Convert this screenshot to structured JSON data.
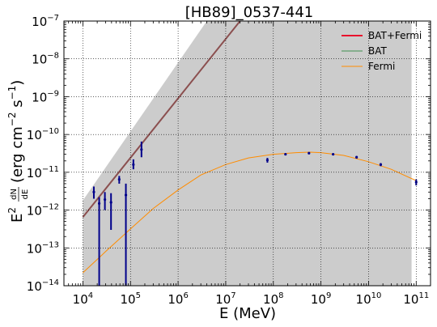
{
  "chart_data": {
    "type": "scatter",
    "title": "[HB89]_0537-441",
    "xlabel": "E (MeV)",
    "ylabel_main": "E",
    "ylabel_sup": "2",
    "ylabel_frac_num": "dN",
    "ylabel_frac_den": "dE",
    "ylabel_units": "(erg cm",
    "ylabel_units_sup": "−2",
    "ylabel_units_mid": " s",
    "ylabel_units_sup2": "−1",
    "ylabel_units_end": ")",
    "xscale": "log",
    "yscale": "log",
    "xlim": [
      4000.0,
      200000000000.0
    ],
    "ylim": [
      1e-14,
      1e-07
    ],
    "grid": true,
    "legend_position": "top-right",
    "x_ticks": [
      {
        "value": 10000.0,
        "base": "10",
        "exp": "4"
      },
      {
        "value": 100000.0,
        "base": "10",
        "exp": "5"
      },
      {
        "value": 1000000.0,
        "base": "10",
        "exp": "6"
      },
      {
        "value": 10000000.0,
        "base": "10",
        "exp": "7"
      },
      {
        "value": 100000000.0,
        "base": "10",
        "exp": "8"
      },
      {
        "value": 1000000000.0,
        "base": "10",
        "exp": "9"
      },
      {
        "value": 10000000000.0,
        "base": "10",
        "exp": "10"
      },
      {
        "value": 100000000000.0,
        "base": "10",
        "exp": "11"
      }
    ],
    "y_ticks": [
      {
        "value": 1e-14,
        "base": "10",
        "exp": "−14"
      },
      {
        "value": 1e-13,
        "base": "10",
        "exp": "−13"
      },
      {
        "value": 1e-12,
        "base": "10",
        "exp": "−12"
      },
      {
        "value": 1e-11,
        "base": "10",
        "exp": "−11"
      },
      {
        "value": 1e-10,
        "base": "10",
        "exp": "−10"
      },
      {
        "value": 1e-09,
        "base": "10",
        "exp": "−9"
      },
      {
        "value": 1e-08,
        "base": "10",
        "exp": "−8"
      },
      {
        "value": 1e-07,
        "base": "10",
        "exp": "−7"
      }
    ],
    "legend": [
      {
        "name": "BAT+Fermi",
        "color": "#e8102c"
      },
      {
        "name": "BAT",
        "color": "#3f8f4f"
      },
      {
        "name": "Fermi",
        "color": "#ff8c00"
      }
    ],
    "confidence_band": {
      "color": "#cccccc",
      "upper": [
        [
          10000.0,
          1.8e-12
        ],
        [
          4000000.0,
          1e-07
        ]
      ],
      "lower_y": 1e-14,
      "x_range": [
        10000.0,
        80000000000.0
      ]
    },
    "bat_model": {
      "color": "#8b4f4f",
      "points": [
        [
          10000.0,
          6.5e-13
        ],
        [
          20000000.0,
          1e-07
        ]
      ]
    },
    "fermi_model": {
      "color": "#ff8c00",
      "points": [
        [
          10000.0,
          2.2e-14
        ],
        [
          30000.0,
          8e-14
        ],
        [
          100000.0,
          3.2e-13
        ],
        [
          300000.0,
          1.1e-12
        ],
        [
          1000000.0,
          3.4e-12
        ],
        [
          3000000.0,
          8.5e-12
        ],
        [
          10000000.0,
          1.6e-11
        ],
        [
          30000000.0,
          2.4e-11
        ],
        [
          100000000.0,
          3e-11
        ],
        [
          300000000.0,
          3.3e-11
        ],
        [
          600000000.0,
          3.4e-11
        ],
        [
          1000000000.0,
          3.3e-11
        ],
        [
          3000000000.0,
          2.8e-11
        ],
        [
          10000000000.0,
          1.9e-11
        ],
        [
          30000000000.0,
          1.2e-11
        ],
        [
          100000000000.0,
          6e-12
        ]
      ]
    },
    "bat_points": {
      "color": "#00008b",
      "points": [
        {
          "x": 17000.0,
          "y": 3e-12,
          "lo": 2e-12,
          "hi": 4.2e-12
        },
        {
          "x": 22000.0,
          "y": 1.5e-12,
          "lo": 1e-14,
          "hi": 2.2e-12
        },
        {
          "x": 29000.0,
          "y": 1.9e-12,
          "lo": 1e-12,
          "hi": 3e-12
        },
        {
          "x": 39000.0,
          "y": 1.6e-12,
          "lo": 3e-13,
          "hi": 2.8e-12
        },
        {
          "x": 58000.0,
          "y": 6.5e-12,
          "lo": 5e-12,
          "hi": 8e-12
        },
        {
          "x": 80000.0,
          "y": 2.5e-12,
          "lo": 1e-14,
          "hi": 5e-12
        },
        {
          "x": 115000.0,
          "y": 1.6e-11,
          "lo": 1.2e-11,
          "hi": 2.2e-11
        },
        {
          "x": 170000.0,
          "y": 4e-11,
          "lo": 2.5e-11,
          "hi": 6.5e-11
        }
      ]
    },
    "fermi_points": {
      "color": "#00008b",
      "points": [
        {
          "x": 75000000.0,
          "y": 2.1e-11,
          "lo": 1.8e-11,
          "hi": 2.4e-11
        },
        {
          "x": 180000000.0,
          "y": 3e-11,
          "lo": 2.85e-11,
          "hi": 3.15e-11
        },
        {
          "x": 560000000.0,
          "y": 3.2e-11,
          "lo": 3.05e-11,
          "hi": 3.35e-11
        },
        {
          "x": 1800000000.0,
          "y": 3e-11,
          "lo": 2.85e-11,
          "hi": 3.15e-11
        },
        {
          "x": 5600000000.0,
          "y": 2.5e-11,
          "lo": 2.3e-11,
          "hi": 2.7e-11
        },
        {
          "x": 18000000000.0,
          "y": 1.6e-11,
          "lo": 1.45e-11,
          "hi": 1.75e-11
        },
        {
          "x": 100000000000.0,
          "y": 5.5e-12,
          "lo": 4.5e-12,
          "hi": 6.5e-12
        }
      ]
    }
  }
}
